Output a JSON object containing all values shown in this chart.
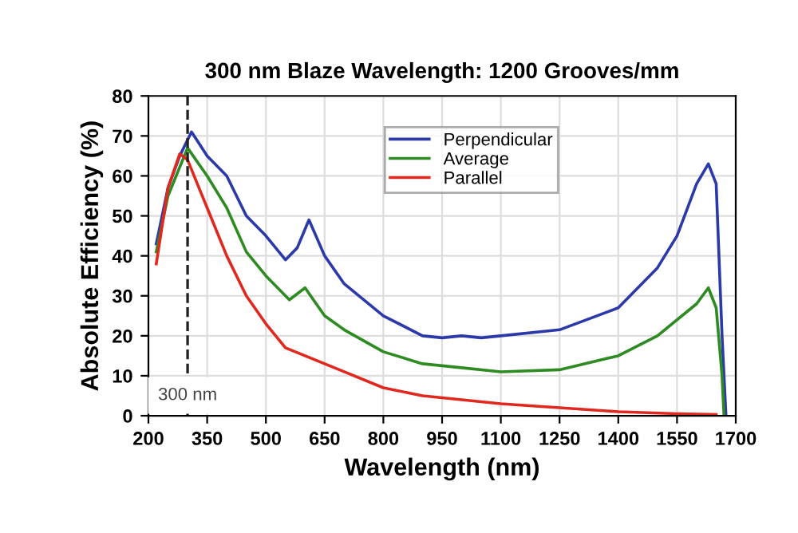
{
  "chart_data": {
    "type": "line",
    "title": "300 nm Blaze Wavelength: 1200 Grooves/mm",
    "xlabel": "Wavelength (nm)",
    "ylabel": "Absolute Efficiency (%)",
    "xlim": [
      200,
      1700
    ],
    "xticks": [
      200,
      350,
      500,
      650,
      800,
      950,
      1100,
      1250,
      1400,
      1550,
      1700
    ],
    "ylim": [
      0,
      80
    ],
    "yticks": [
      0,
      10,
      20,
      30,
      40,
      50,
      60,
      70,
      80
    ],
    "grid": true,
    "legend": "top right",
    "ref_lines": [
      {
        "axis": "x",
        "value": 300,
        "label": "300 nm",
        "color": "#222222",
        "line_style": "dashed"
      }
    ],
    "series": [
      {
        "name": "Perpendicular",
        "color": "#2b3aa8",
        "x": [
          220,
          250,
          280,
          310,
          350,
          400,
          450,
          500,
          550,
          580,
          610,
          650,
          700,
          800,
          900,
          950,
          1000,
          1050,
          1100,
          1250,
          1400,
          1500,
          1550,
          1600,
          1630,
          1650,
          1665,
          1675
        ],
        "values": [
          43,
          57,
          65,
          71,
          65,
          60,
          50,
          45,
          39,
          42,
          49,
          40,
          33,
          25,
          20,
          19.5,
          20,
          19.5,
          20,
          21.5,
          27,
          37,
          45,
          58,
          63,
          58,
          20,
          0
        ]
      },
      {
        "name": "Average",
        "color": "#2e8b22",
        "x": [
          220,
          250,
          300,
          350,
          400,
          450,
          500,
          560,
          600,
          650,
          700,
          800,
          900,
          950,
          1000,
          1100,
          1250,
          1400,
          1500,
          1600,
          1630,
          1650,
          1665,
          1670
        ],
        "values": [
          41,
          55,
          67,
          60,
          52,
          41,
          35,
          29,
          32,
          25,
          21.5,
          16,
          13,
          12.5,
          12,
          11,
          11.5,
          15,
          20,
          28,
          32,
          27,
          10,
          0
        ]
      },
      {
        "name": "Parallel",
        "color": "#e0281e",
        "x": [
          220,
          250,
          280,
          300,
          350,
          400,
          450,
          500,
          550,
          600,
          700,
          800,
          900,
          1000,
          1100,
          1250,
          1400,
          1550,
          1650
        ],
        "values": [
          38,
          57,
          65.5,
          64,
          52,
          40,
          30,
          23,
          17,
          15,
          11,
          7,
          5,
          4,
          3,
          2,
          1,
          0.5,
          0.3
        ]
      }
    ]
  }
}
